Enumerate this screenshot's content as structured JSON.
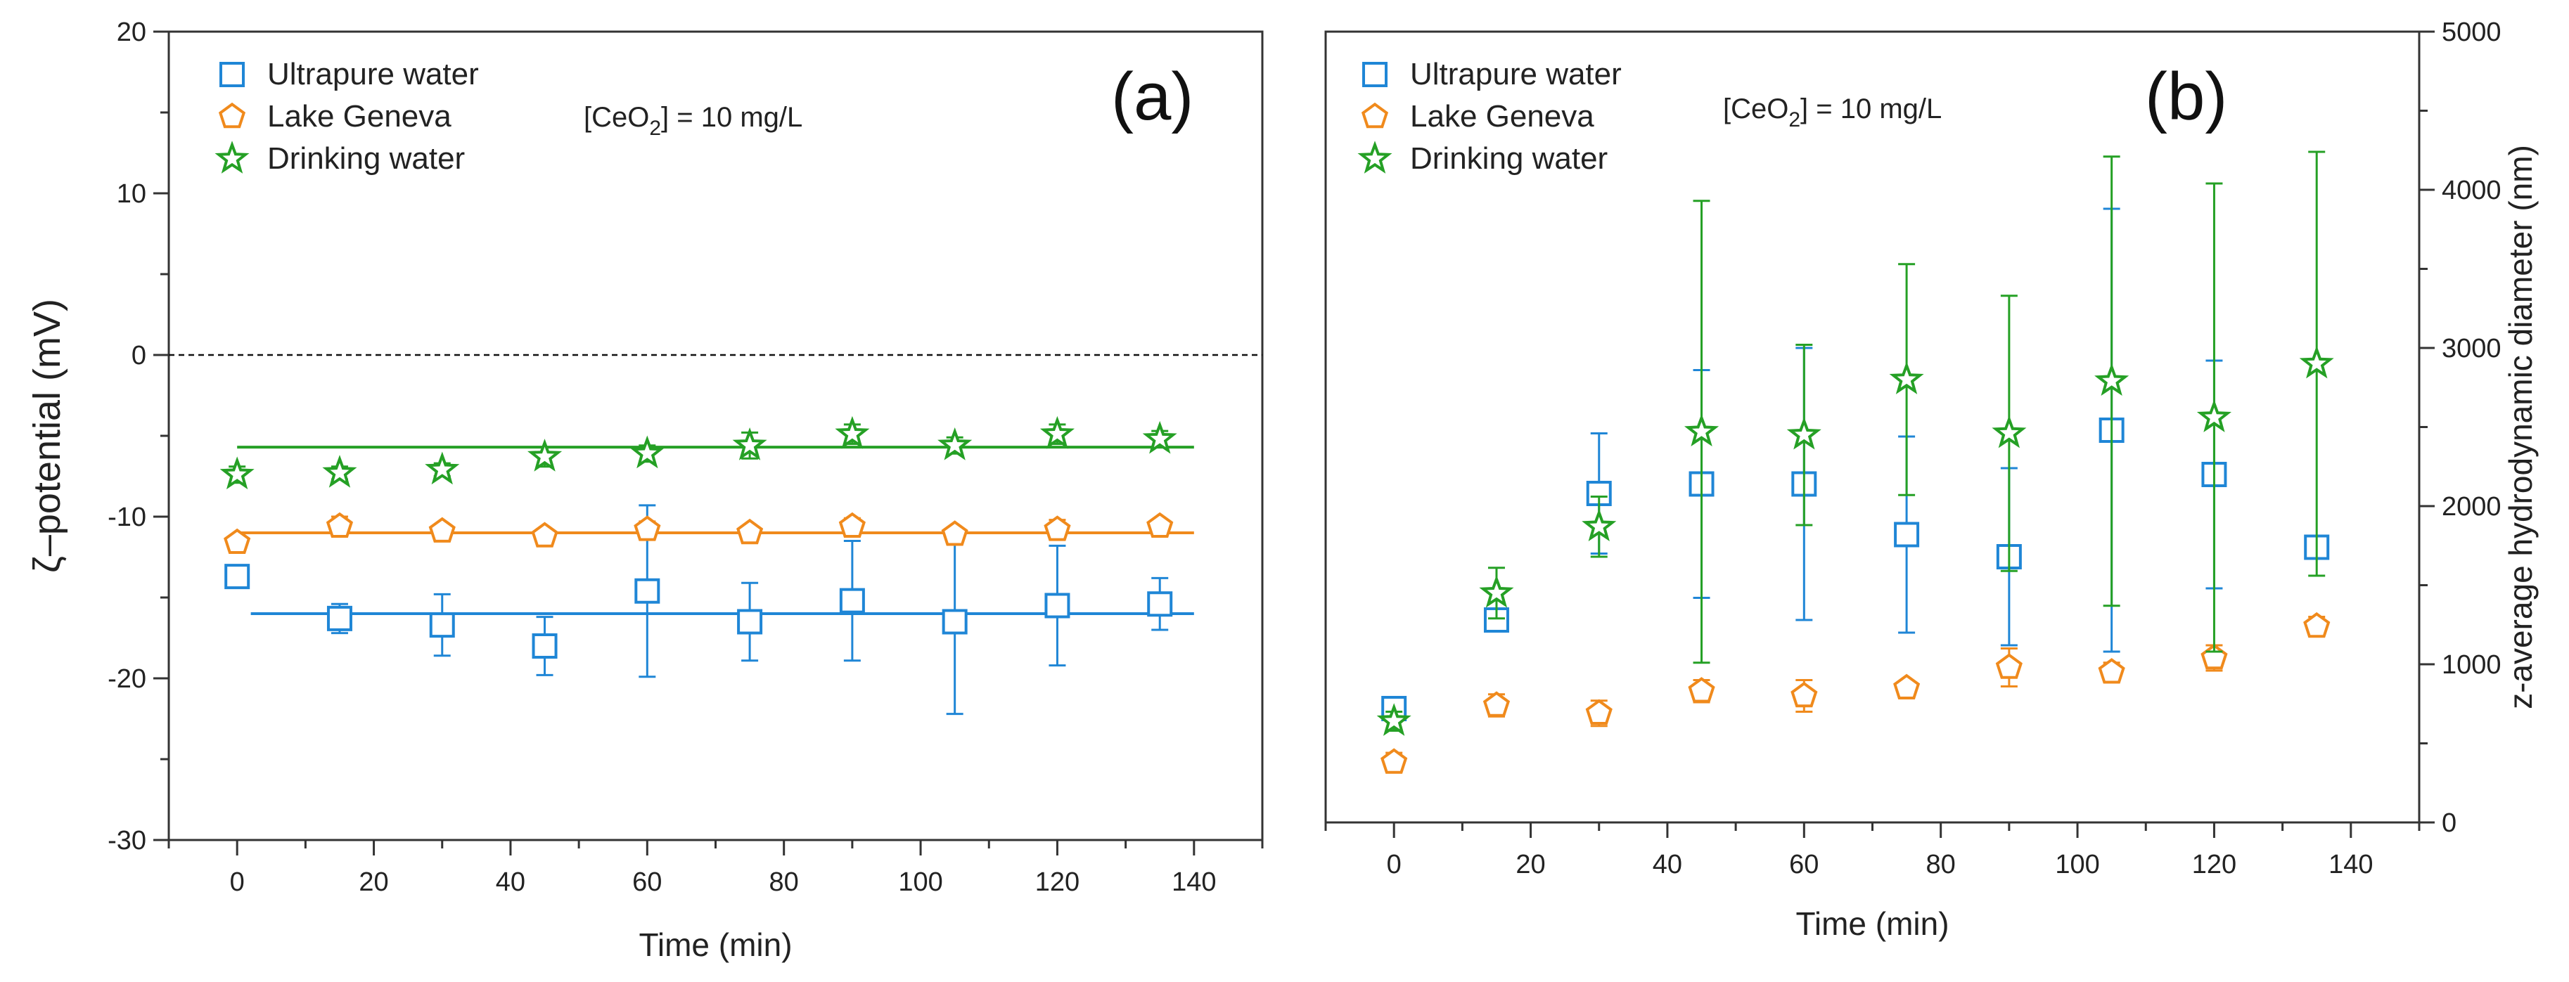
{
  "colors": {
    "ultrapure": "#1f86d6",
    "geneva": "#f08a1c",
    "drinking": "#25a025"
  },
  "chart_data": [
    {
      "type": "scatter",
      "panel_label": "(a)",
      "annotation": "[CeO",
      "annotation_sub": "2",
      "annotation_tail": "] = 10 mg/L",
      "xlabel": "Time (min)",
      "ylabel": "ζ–potential (mV)",
      "xlim": [
        -10,
        150
      ],
      "ylim": [
        -30,
        20
      ],
      "xticks": [
        0,
        20,
        40,
        60,
        80,
        100,
        120,
        140
      ],
      "yticks": [
        -30,
        -20,
        -10,
        0,
        10,
        20
      ],
      "ytick_labels": [
        "-30",
        "-20",
        "-10",
        "0",
        "10",
        "20"
      ],
      "zero_line": 0,
      "x": [
        0,
        15,
        30,
        45,
        60,
        75,
        90,
        105,
        120,
        135
      ],
      "series": [
        {
          "name": "Ultrapure water",
          "key": "ultrapure",
          "marker": "square",
          "values": [
            -13.7,
            -16.3,
            -16.7,
            -18.0,
            -14.6,
            -16.5,
            -15.2,
            -16.5,
            -15.5,
            -15.4
          ],
          "errors": [
            0.5,
            0.9,
            1.9,
            1.8,
            5.3,
            2.4,
            3.7,
            5.7,
            3.7,
            1.6
          ],
          "fit_line": [
            2,
            140,
            -16.0
          ]
        },
        {
          "name": "Lake Geneva",
          "key": "geneva",
          "marker": "pentagon",
          "values": [
            -11.6,
            -10.6,
            -10.9,
            -11.2,
            -10.8,
            -11.0,
            -10.6,
            -11.1,
            -10.8,
            -10.6
          ],
          "errors": [
            0.4,
            0.6,
            0.4,
            0.4,
            0.5,
            0.4,
            0.5,
            0.4,
            0.6,
            0.4
          ],
          "fit_line": [
            0,
            140,
            -11.0
          ]
        },
        {
          "name": "Drinking water",
          "key": "drinking",
          "marker": "star",
          "values": [
            -7.4,
            -7.3,
            -7.1,
            -6.3,
            -6.1,
            -5.6,
            -4.9,
            -5.6,
            -4.9,
            -5.2
          ],
          "errors": [
            0.5,
            0.4,
            0.4,
            0.6,
            0.5,
            0.8,
            0.6,
            0.5,
            0.6,
            0.5
          ],
          "fit_line": [
            0,
            140,
            -5.7
          ]
        }
      ]
    },
    {
      "type": "scatter",
      "panel_label": "(b)",
      "annotation": "[CeO",
      "annotation_sub": "2",
      "annotation_tail": "] = 10 mg/L",
      "xlabel": "Time (min)",
      "ylabel": "z-average hydrodynamic diameter (nm)",
      "xlim": [
        -10,
        150
      ],
      "ylim": [
        0,
        5000
      ],
      "xticks": [
        0,
        20,
        40,
        60,
        80,
        100,
        120,
        140
      ],
      "yticks": [
        0,
        1000,
        2000,
        3000,
        4000,
        5000
      ],
      "ytick_labels": [
        "0",
        "1000",
        "2000",
        "3000",
        "4000",
        "5000"
      ],
      "x": [
        0,
        15,
        30,
        45,
        60,
        75,
        90,
        105,
        120,
        135
      ],
      "series": [
        {
          "name": "Ultrapure water",
          "key": "ultrapure",
          "marker": "square",
          "values": [
            720,
            1280,
            2080,
            2140,
            2140,
            1820,
            1680,
            2480,
            2200,
            1740
          ],
          "errors": [
            60,
            50,
            380,
            720,
            860,
            620,
            560,
            1400,
            720,
            40
          ]
        },
        {
          "name": "Lake Geneva",
          "key": "geneva",
          "marker": "pentagon",
          "values": [
            380,
            740,
            690,
            830,
            800,
            850,
            980,
            950,
            1040,
            1240
          ],
          "errors": [
            60,
            70,
            80,
            70,
            100,
            40,
            120,
            60,
            80,
            60
          ]
        },
        {
          "name": "Drinking water",
          "key": "drinking",
          "marker": "star",
          "values": [
            640,
            1450,
            1870,
            2470,
            2450,
            2800,
            2460,
            2790,
            2560,
            2900
          ],
          "errors": [
            60,
            160,
            190,
            1460,
            570,
            730,
            870,
            1420,
            1480,
            1340
          ]
        }
      ]
    }
  ]
}
